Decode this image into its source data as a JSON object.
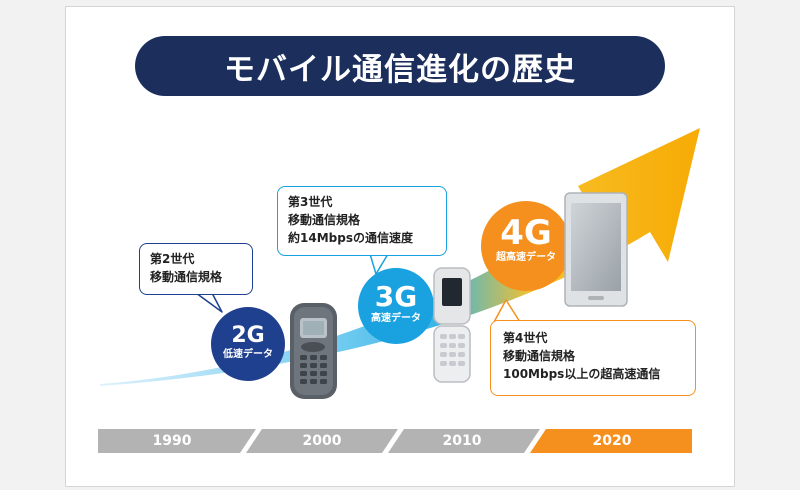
{
  "title": "モバイル通信進化の歴史",
  "colors": {
    "navy": "#1c2f5c",
    "blue_2g": "#1f3f8f",
    "blue_3g": "#1aa1e0",
    "orange_4g": "#f5901e",
    "timeline_gray": "#b3b3b3",
    "timeline_orange": "#f5901e"
  },
  "generations": [
    {
      "id": "2G",
      "label": "2G",
      "sub": "低速データ",
      "callout": [
        "第2世代",
        "移動通信規格"
      ],
      "device": "feature-phone-icon"
    },
    {
      "id": "3G",
      "label": "3G",
      "sub": "高速データ",
      "callout": [
        "第3世代",
        "移動通信規格",
        "約14Mbpsの通信速度"
      ],
      "device": "flip-phone-icon"
    },
    {
      "id": "4G",
      "label": "4G",
      "sub": "超高速データ",
      "callout": [
        "第4世代",
        "移動通信規格",
        "100Mbps以上の超高速通信"
      ],
      "device": "smartphone-icon"
    }
  ],
  "timeline": [
    "1990",
    "2000",
    "2010",
    "2020"
  ]
}
